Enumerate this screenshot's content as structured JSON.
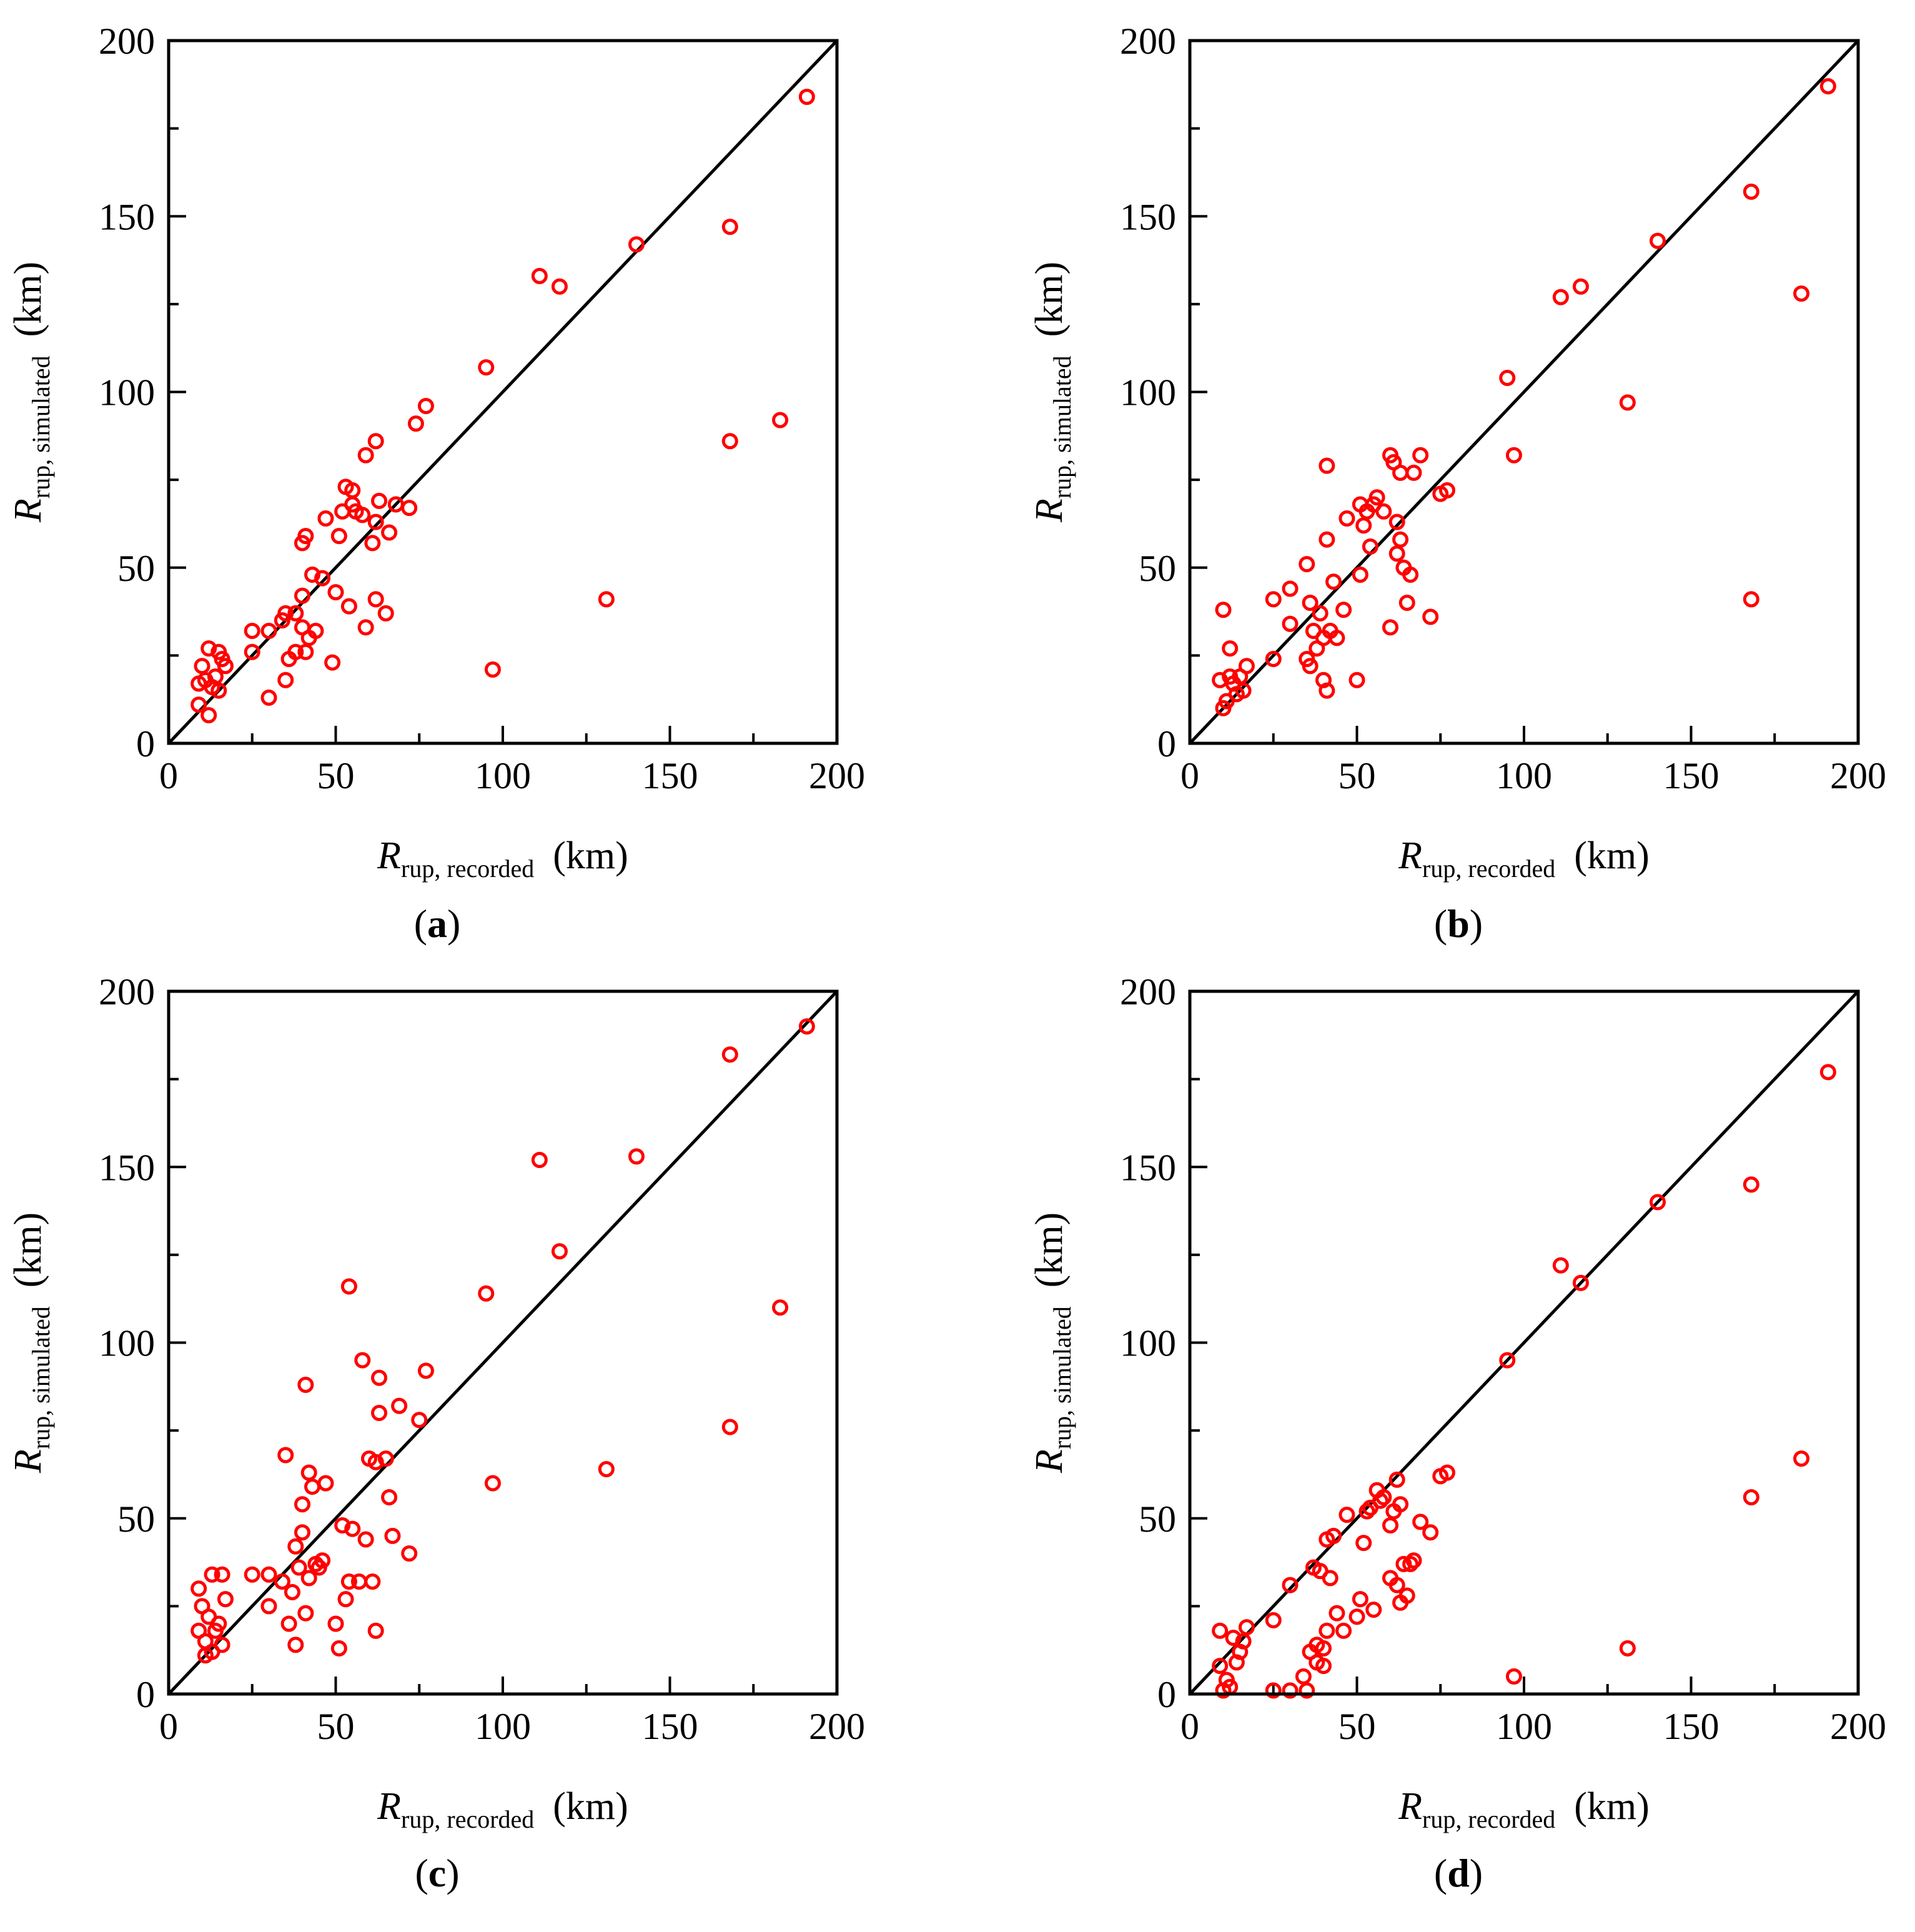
{
  "chart_data": [
    {
      "type": "scatter",
      "panel": "a",
      "xlabel": {
        "main": "R",
        "sub": "rup, recorded",
        "unit": "(km)"
      },
      "ylabel": {
        "main": "R",
        "sub": "rup, simulated",
        "unit": "(km)"
      },
      "xlim": [
        0,
        200
      ],
      "ylim": [
        0,
        200
      ],
      "xticks": [
        "0",
        "50",
        "100",
        "150",
        "200"
      ],
      "yticks": [
        "0",
        "50",
        "100",
        "150",
        "200"
      ],
      "reference_line": "y = x",
      "marker_color": "#ff0000",
      "line_color": "#000000",
      "points": [
        [
          9,
          17
        ],
        [
          9,
          11
        ],
        [
          10,
          22
        ],
        [
          11,
          18
        ],
        [
          12,
          27
        ],
        [
          12,
          8
        ],
        [
          13,
          16
        ],
        [
          14,
          19
        ],
        [
          15,
          26
        ],
        [
          15,
          15
        ],
        [
          16,
          24
        ],
        [
          17,
          22
        ],
        [
          25,
          32
        ],
        [
          25,
          26
        ],
        [
          30,
          32
        ],
        [
          30,
          13
        ],
        [
          34,
          35
        ],
        [
          35,
          37
        ],
        [
          35,
          18
        ],
        [
          36,
          24
        ],
        [
          38,
          26
        ],
        [
          38,
          37
        ],
        [
          40,
          33
        ],
        [
          40,
          57
        ],
        [
          40,
          42
        ],
        [
          41,
          59
        ],
        [
          41,
          26
        ],
        [
          42,
          30
        ],
        [
          43,
          48
        ],
        [
          44,
          32
        ],
        [
          46,
          47
        ],
        [
          47,
          64
        ],
        [
          49,
          23
        ],
        [
          50,
          43
        ],
        [
          51,
          59
        ],
        [
          52,
          66
        ],
        [
          53,
          73
        ],
        [
          54,
          39
        ],
        [
          55,
          72
        ],
        [
          55,
          68
        ],
        [
          56,
          66
        ],
        [
          58,
          65
        ],
        [
          59,
          82
        ],
        [
          59,
          33
        ],
        [
          61,
          57
        ],
        [
          62,
          63
        ],
        [
          62,
          86
        ],
        [
          62,
          41
        ],
        [
          63,
          69
        ],
        [
          65,
          37
        ],
        [
          66,
          60
        ],
        [
          68,
          68
        ],
        [
          72,
          67
        ],
        [
          74,
          91
        ],
        [
          77,
          96
        ],
        [
          95,
          107
        ],
        [
          97,
          21
        ],
        [
          111,
          133
        ],
        [
          117,
          130
        ],
        [
          131,
          41
        ],
        [
          140,
          142
        ],
        [
          168,
          147
        ],
        [
          168,
          86
        ],
        [
          183,
          92
        ],
        [
          191,
          184
        ]
      ]
    },
    {
      "type": "scatter",
      "panel": "b",
      "xlabel": {
        "main": "R",
        "sub": "rup, recorded",
        "unit": "(km)"
      },
      "ylabel": {
        "main": "R",
        "sub": "rup, simulated",
        "unit": "(km)"
      },
      "xlim": [
        0,
        200
      ],
      "ylim": [
        0,
        200
      ],
      "xticks": [
        "0",
        "50",
        "100",
        "150",
        "200"
      ],
      "yticks": [
        "0",
        "50",
        "100",
        "150",
        "200"
      ],
      "reference_line": "y = x",
      "marker_color": "#ff0000",
      "line_color": "#000000",
      "points": [
        [
          9,
          18
        ],
        [
          10,
          10
        ],
        [
          10,
          38
        ],
        [
          11,
          12
        ],
        [
          12,
          19
        ],
        [
          12,
          27
        ],
        [
          13,
          17
        ],
        [
          14,
          14
        ],
        [
          15,
          19
        ],
        [
          16,
          15
        ],
        [
          17,
          22
        ],
        [
          25,
          41
        ],
        [
          25,
          24
        ],
        [
          30,
          44
        ],
        [
          30,
          34
        ],
        [
          35,
          51
        ],
        [
          35,
          24
        ],
        [
          36,
          22
        ],
        [
          36,
          40
        ],
        [
          37,
          32
        ],
        [
          38,
          27
        ],
        [
          39,
          37
        ],
        [
          40,
          30
        ],
        [
          40,
          18
        ],
        [
          41,
          15
        ],
        [
          41,
          79
        ],
        [
          41,
          58
        ],
        [
          42,
          32
        ],
        [
          43,
          46
        ],
        [
          44,
          30
        ],
        [
          46,
          38
        ],
        [
          47,
          64
        ],
        [
          50,
          18
        ],
        [
          51,
          48
        ],
        [
          51,
          68
        ],
        [
          52,
          62
        ],
        [
          53,
          66
        ],
        [
          54,
          56
        ],
        [
          55,
          68
        ],
        [
          56,
          70
        ],
        [
          58,
          66
        ],
        [
          60,
          82
        ],
        [
          60,
          33
        ],
        [
          61,
          80
        ],
        [
          62,
          63
        ],
        [
          62,
          54
        ],
        [
          63,
          77
        ],
        [
          63,
          58
        ],
        [
          64,
          50
        ],
        [
          65,
          40
        ],
        [
          66,
          48
        ],
        [
          67,
          77
        ],
        [
          69,
          82
        ],
        [
          72,
          36
        ],
        [
          75,
          71
        ],
        [
          77,
          72
        ],
        [
          95,
          104
        ],
        [
          97,
          82
        ],
        [
          111,
          127
        ],
        [
          117,
          130
        ],
        [
          131,
          97
        ],
        [
          140,
          143
        ],
        [
          168,
          157
        ],
        [
          168,
          41
        ],
        [
          183,
          128
        ],
        [
          191,
          187
        ]
      ]
    },
    {
      "type": "scatter",
      "panel": "c",
      "xlabel": {
        "main": "R",
        "sub": "rup, recorded",
        "unit": "(km)"
      },
      "ylabel": {
        "main": "R",
        "sub": "rup, simulated",
        "unit": "(km)"
      },
      "xlim": [
        0,
        200
      ],
      "ylim": [
        0,
        200
      ],
      "xticks": [
        "0",
        "50",
        "100",
        "150",
        "200"
      ],
      "yticks": [
        "0",
        "50",
        "100",
        "150",
        "200"
      ],
      "reference_line": "y = x",
      "marker_color": "#ff0000",
      "line_color": "#000000",
      "points": [
        [
          9,
          30
        ],
        [
          9,
          18
        ],
        [
          10,
          25
        ],
        [
          11,
          15
        ],
        [
          11,
          11
        ],
        [
          12,
          22
        ],
        [
          13,
          34
        ],
        [
          13,
          12
        ],
        [
          14,
          18
        ],
        [
          15,
          20
        ],
        [
          16,
          34
        ],
        [
          16,
          14
        ],
        [
          17,
          27
        ],
        [
          25,
          34
        ],
        [
          30,
          34
        ],
        [
          30,
          25
        ],
        [
          34,
          32
        ],
        [
          35,
          68
        ],
        [
          36,
          20
        ],
        [
          37,
          29
        ],
        [
          38,
          42
        ],
        [
          38,
          14
        ],
        [
          39,
          36
        ],
        [
          40,
          46
        ],
        [
          40,
          54
        ],
        [
          41,
          88
        ],
        [
          41,
          23
        ],
        [
          42,
          63
        ],
        [
          42,
          33
        ],
        [
          43,
          59
        ],
        [
          44,
          37
        ],
        [
          45,
          36
        ],
        [
          46,
          38
        ],
        [
          47,
          60
        ],
        [
          50,
          20
        ],
        [
          51,
          13
        ],
        [
          52,
          48
        ],
        [
          53,
          27
        ],
        [
          54,
          32
        ],
        [
          54,
          116
        ],
        [
          55,
          47
        ],
        [
          57,
          32
        ],
        [
          58,
          95
        ],
        [
          59,
          44
        ],
        [
          60,
          67
        ],
        [
          61,
          32
        ],
        [
          62,
          18
        ],
        [
          62,
          66
        ],
        [
          63,
          80
        ],
        [
          63,
          90
        ],
        [
          65,
          67
        ],
        [
          66,
          56
        ],
        [
          67,
          45
        ],
        [
          69,
          82
        ],
        [
          72,
          40
        ],
        [
          75,
          78
        ],
        [
          77,
          92
        ],
        [
          95,
          114
        ],
        [
          97,
          60
        ],
        [
          111,
          152
        ],
        [
          117,
          126
        ],
        [
          131,
          64
        ],
        [
          140,
          153
        ],
        [
          168,
          182
        ],
        [
          168,
          76
        ],
        [
          183,
          110
        ],
        [
          191,
          190
        ]
      ]
    },
    {
      "type": "scatter",
      "panel": "d",
      "xlabel": {
        "main": "R",
        "sub": "rup, recorded",
        "unit": "(km)"
      },
      "ylabel": {
        "main": "R",
        "sub": "rup, simulated",
        "unit": "(km)"
      },
      "xlim": [
        0,
        200
      ],
      "ylim": [
        0,
        200
      ],
      "xticks": [
        "0",
        "50",
        "100",
        "150",
        "200"
      ],
      "yticks": [
        "0",
        "50",
        "100",
        "150",
        "200"
      ],
      "reference_line": "y = x",
      "marker_color": "#ff0000",
      "line_color": "#000000",
      "points": [
        [
          9,
          18
        ],
        [
          9,
          8
        ],
        [
          10,
          1
        ],
        [
          11,
          4
        ],
        [
          12,
          2
        ],
        [
          13,
          16
        ],
        [
          14,
          9
        ],
        [
          15,
          12
        ],
        [
          16,
          15
        ],
        [
          17,
          19
        ],
        [
          25,
          21
        ],
        [
          25,
          1
        ],
        [
          30,
          31
        ],
        [
          30,
          1
        ],
        [
          34,
          5
        ],
        [
          35,
          1
        ],
        [
          36,
          12
        ],
        [
          37,
          36
        ],
        [
          38,
          14
        ],
        [
          38,
          9
        ],
        [
          39,
          35
        ],
        [
          40,
          13
        ],
        [
          40,
          8
        ],
        [
          41,
          44
        ],
        [
          41,
          18
        ],
        [
          42,
          33
        ],
        [
          43,
          45
        ],
        [
          44,
          23
        ],
        [
          46,
          18
        ],
        [
          47,
          51
        ],
        [
          50,
          22
        ],
        [
          51,
          27
        ],
        [
          52,
          43
        ],
        [
          53,
          52
        ],
        [
          54,
          53
        ],
        [
          55,
          24
        ],
        [
          56,
          58
        ],
        [
          57,
          55
        ],
        [
          58,
          56
        ],
        [
          60,
          48
        ],
        [
          60,
          33
        ],
        [
          61,
          52
        ],
        [
          62,
          31
        ],
        [
          62,
          61
        ],
        [
          63,
          54
        ],
        [
          63,
          26
        ],
        [
          64,
          37
        ],
        [
          65,
          28
        ],
        [
          66,
          37
        ],
        [
          67,
          38
        ],
        [
          69,
          49
        ],
        [
          72,
          46
        ],
        [
          75,
          62
        ],
        [
          77,
          63
        ],
        [
          95,
          95
        ],
        [
          97,
          5
        ],
        [
          111,
          122
        ],
        [
          117,
          117
        ],
        [
          131,
          13
        ],
        [
          140,
          140
        ],
        [
          168,
          145
        ],
        [
          168,
          56
        ],
        [
          183,
          67
        ],
        [
          191,
          177
        ]
      ]
    }
  ],
  "panel_labels": [
    "a",
    "b",
    "c",
    "d"
  ]
}
